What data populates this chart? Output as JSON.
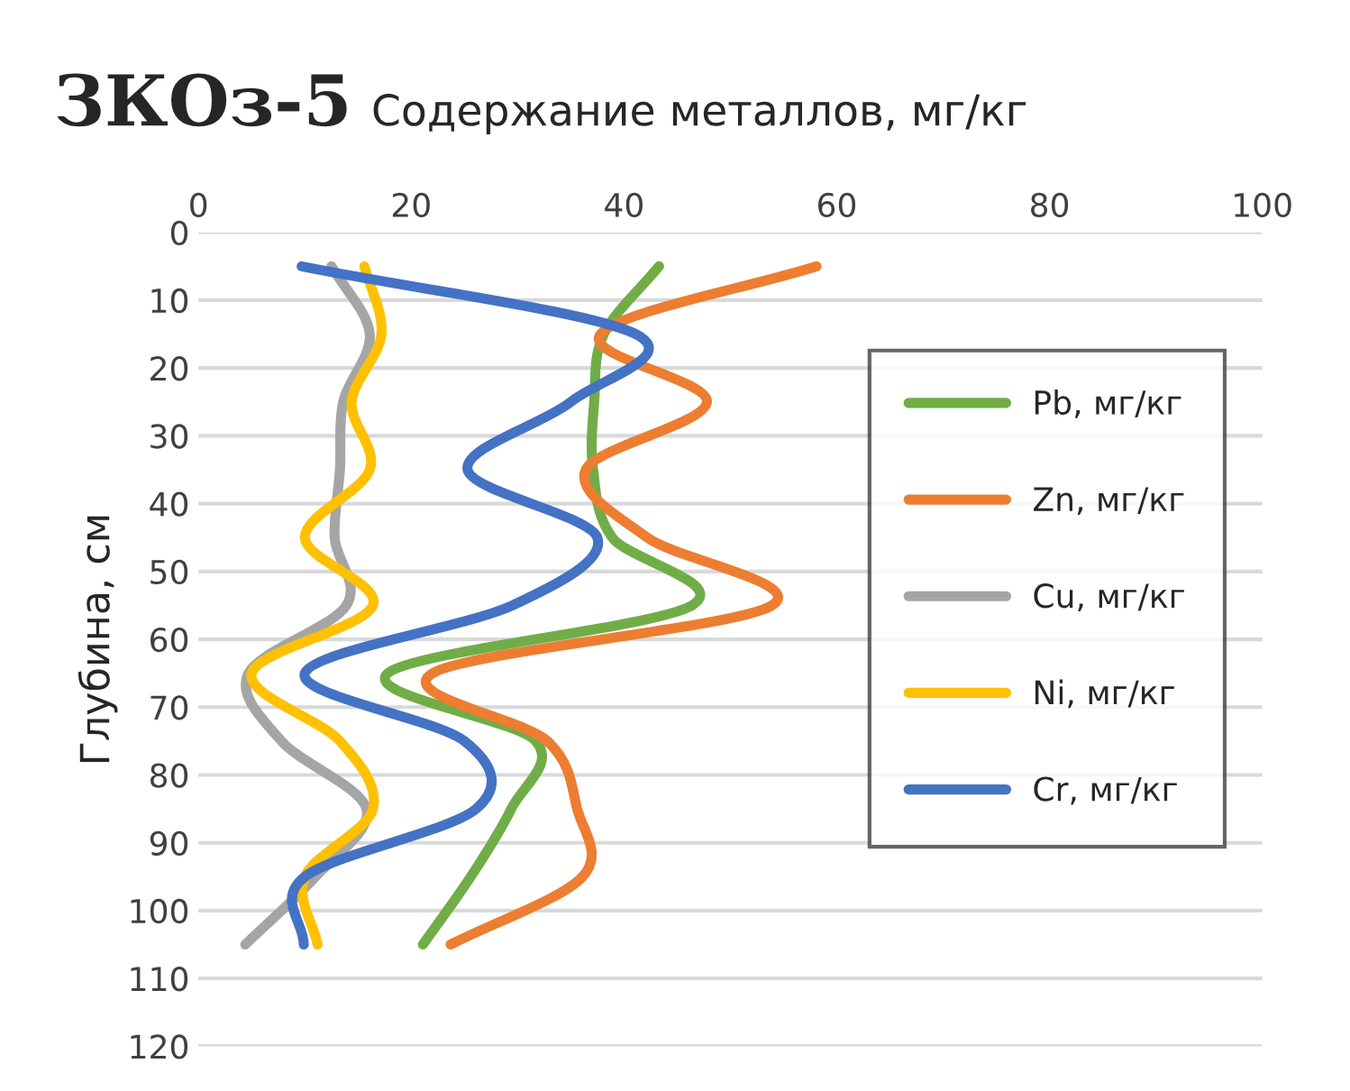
{
  "chart_data": {
    "type": "line",
    "title": "ЗКОз-5",
    "xlabel": "Содержание металлов, мг/кг",
    "ylabel": "Глубина, см",
    "series": [
      {
        "name": "Pb, мг/кг",
        "color": "#70ad47",
        "x": [
          43.3,
          38.1,
          37.2,
          37.1,
          38.9,
          46.4,
          17.8,
          31.7,
          29.4,
          25.6,
          21.1
        ],
        "values": [
          5,
          15,
          25,
          35,
          45,
          55,
          65,
          75,
          85,
          95,
          105
        ]
      },
      {
        "name": "Zn, мг/кг",
        "color": "#ed7d31",
        "x": [
          58.1,
          37.8,
          47.8,
          36.4,
          42.2,
          53.9,
          22.0,
          32.8,
          35.6,
          36.1,
          23.7
        ],
        "values": [
          5,
          15,
          25,
          35,
          45,
          55,
          65,
          75,
          85,
          95,
          105
        ]
      },
      {
        "name": "Cu, мг/кг",
        "color": "#a5a5a5",
        "x": [
          12.5,
          16.1,
          13.6,
          13.3,
          12.8,
          13.9,
          4.7,
          7.8,
          15.8,
          11.0,
          4.4
        ],
        "values": [
          5,
          15,
          25,
          35,
          45,
          55,
          65,
          75,
          85,
          95,
          105
        ]
      },
      {
        "name": "Ni, мг/кг",
        "color": "#ffc000",
        "x": [
          15.6,
          17.2,
          14.4,
          16.1,
          10.0,
          16.4,
          5.0,
          13.3,
          16.4,
          10.0,
          11.2
        ],
        "values": [
          5,
          15,
          25,
          35,
          45,
          55,
          65,
          75,
          85,
          95,
          105
        ]
      },
      {
        "name": "Cr, мг/кг",
        "color": "#4472c4",
        "x": [
          9.7,
          41.1,
          35.0,
          25.3,
          37.5,
          29.5,
          10.0,
          25.0,
          26.1,
          10.0,
          9.9
        ],
        "values": [
          5,
          15,
          25,
          35,
          45,
          55,
          65,
          75,
          85,
          95,
          105
        ]
      }
    ],
    "xlim": [
      0,
      100
    ],
    "xticks": [
      0,
      20,
      40,
      60,
      80,
      100
    ],
    "ylim": [
      120,
      0
    ],
    "yticks": [
      0,
      10,
      20,
      30,
      40,
      50,
      60,
      70,
      80,
      90,
      100,
      110,
      120
    ],
    "grid": "y",
    "legend": "right",
    "line_style": "solid"
  }
}
